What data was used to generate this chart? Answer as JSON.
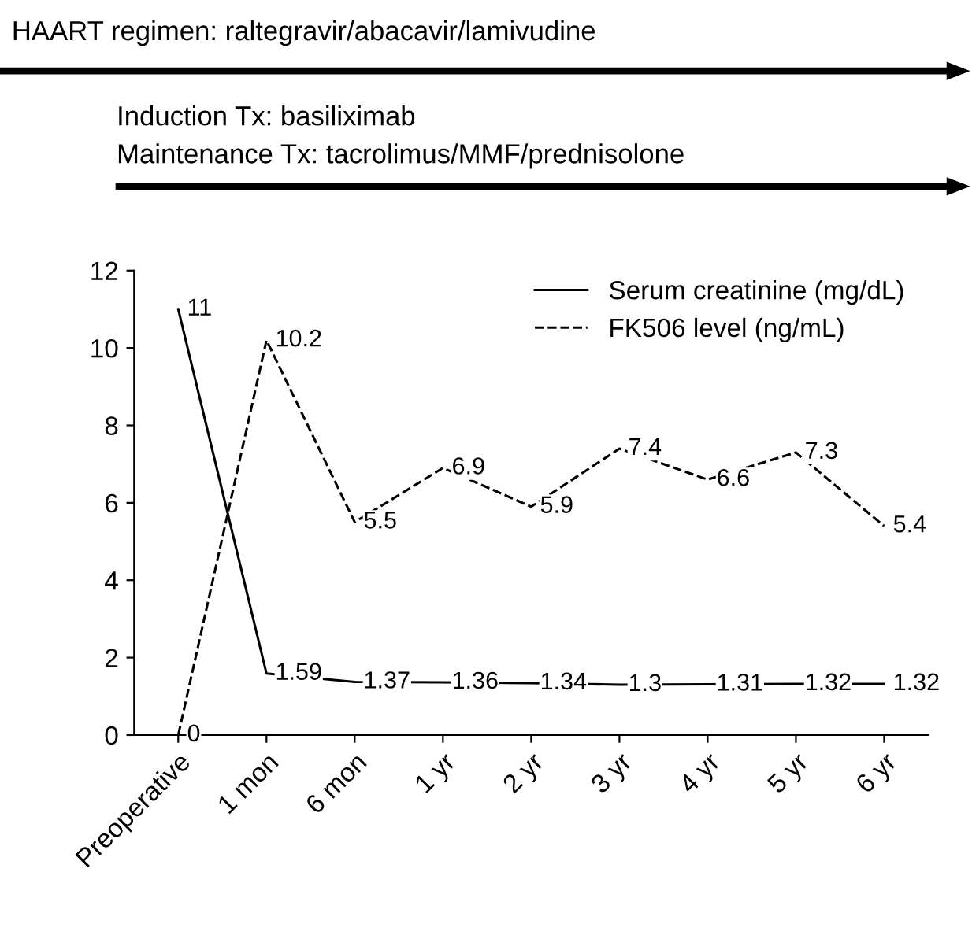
{
  "chart_data": {
    "type": "line",
    "categories": [
      "Preoperative",
      "1 mon",
      "6 mon",
      "1 yr",
      "2 yr",
      "3 yr",
      "4 yr",
      "5 yr",
      "6 yr"
    ],
    "series": [
      {
        "name": "Serum creatinine (mg/dL)",
        "color": "#000000",
        "line_style": "solid",
        "values": [
          11,
          1.59,
          1.37,
          1.36,
          1.34,
          1.3,
          1.31,
          1.32,
          1.32
        ]
      },
      {
        "name": "FK506 level (ng/mL)",
        "color": "#000000",
        "line_style": "dashed",
        "values": [
          0,
          10.2,
          5.5,
          6.9,
          5.9,
          7.4,
          6.6,
          7.3,
          5.4
        ]
      }
    ],
    "ylim": [
      0,
      12
    ],
    "yticks": [
      0,
      2,
      4,
      6,
      8,
      10,
      12
    ],
    "data_labels": true,
    "legend": "top right",
    "grid": false,
    "marker": "none",
    "annotations": [
      "HAART regimen: raltegravir/abacavir/lamivudine",
      "Induction Tx: basiliximab",
      "Maintenance Tx: tacrolimus/MMF/prednisolone"
    ]
  }
}
